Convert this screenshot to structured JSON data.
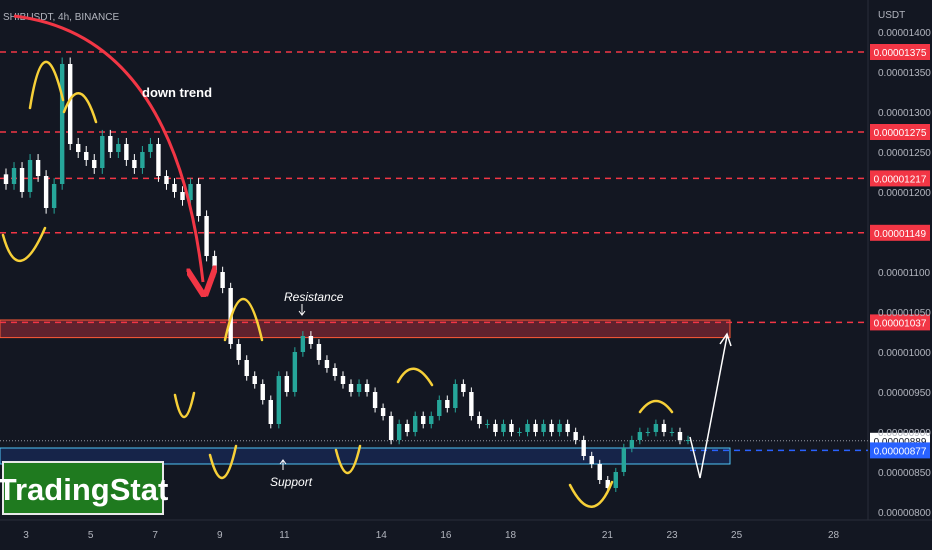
{
  "header": {
    "symbol": "SHIBUSDT, 4h, BINANCE"
  },
  "axis": {
    "unit": "USDT"
  },
  "brand": {
    "logo_text": "TradingStat"
  },
  "annotations": {
    "trend_label": "down trend",
    "resistance_label": "Resistance",
    "support_label": "Support"
  },
  "colors": {
    "background": "#131722",
    "up": "#26a69a",
    "down": "#ffffff",
    "level_line": "#f23645",
    "support_box": "#4fc3f7",
    "doodle": "#f7d038",
    "logo_green": "#1f7a1f"
  },
  "chart_data": {
    "type": "candlestick",
    "symbol": "SHIBUSDT",
    "timeframe": "4h",
    "exchange": "BINANCE",
    "ylabel": "USDT",
    "ylim": [
      7.9e-06,
      1.44e-05
    ],
    "y_ticks": [
      "0.00001400",
      "0.00001350",
      "0.00001300",
      "0.00001250",
      "0.00001200",
      "0.00001100",
      "0.00001050",
      "0.00001000",
      "0.00000950",
      "0.00000900",
      "0.00000850",
      "0.00000800"
    ],
    "x_ticks": [
      "3",
      "5",
      "7",
      "9",
      "11",
      "14",
      "16",
      "18",
      "21",
      "23",
      "25",
      "28"
    ],
    "levels": [
      {
        "label": "0.00001375",
        "value": 1.375e-05
      },
      {
        "label": "0.00001275",
        "value": 1.275e-05
      },
      {
        "label": "0.00001217",
        "value": 1.217e-05
      },
      {
        "label": "0.00001149",
        "value": 1.149e-05
      },
      {
        "label": "0.00001037",
        "value": 1.037e-05
      }
    ],
    "current_price": {
      "label": "0.00000889",
      "value": 8.89e-06
    },
    "support_price": {
      "label": "0.00000877",
      "value": 8.77e-06
    },
    "resistance_zone": [
      1.018e-05,
      1.04e-05
    ],
    "support_zone": [
      8.6e-06,
      8.8e-06
    ],
    "closes": [
      1.21e-05,
      1.23e-05,
      1.2e-05,
      1.24e-05,
      1.22e-05,
      1.18e-05,
      1.21e-05,
      1.36e-05,
      1.26e-05,
      1.25e-05,
      1.24e-05,
      1.23e-05,
      1.27e-05,
      1.25e-05,
      1.26e-05,
      1.24e-05,
      1.23e-05,
      1.25e-05,
      1.26e-05,
      1.22e-05,
      1.21e-05,
      1.2e-05,
      1.19e-05,
      1.21e-05,
      1.17e-05,
      1.12e-05,
      1.1e-05,
      1.08e-05,
      1.01e-05,
      9.9e-06,
      9.7e-06,
      9.6e-06,
      9.4e-06,
      9.1e-06,
      9.7e-06,
      9.5e-06,
      1e-05,
      1.02e-05,
      1.01e-05,
      9.9e-06,
      9.8e-06,
      9.7e-06,
      9.6e-06,
      9.5e-06,
      9.6e-06,
      9.5e-06,
      9.3e-06,
      9.2e-06,
      8.9e-06,
      9.1e-06,
      9e-06,
      9.2e-06,
      9.1e-06,
      9.2e-06,
      9.4e-06,
      9.3e-06,
      9.6e-06,
      9.5e-06,
      9.2e-06,
      9.1e-06,
      9.1e-06,
      9e-06,
      9.1e-06,
      9e-06,
      9e-06,
      9.1e-06,
      9e-06,
      9.1e-06,
      9e-06,
      9.1e-06,
      9e-06,
      8.9e-06,
      8.7e-06,
      8.6e-06,
      8.4e-06,
      8.3e-06,
      8.5e-06,
      8.8e-06,
      8.9e-06,
      9e-06,
      9e-06,
      9.1e-06,
      9e-06,
      9e-06,
      8.9e-06,
      8.9e-06
    ]
  }
}
